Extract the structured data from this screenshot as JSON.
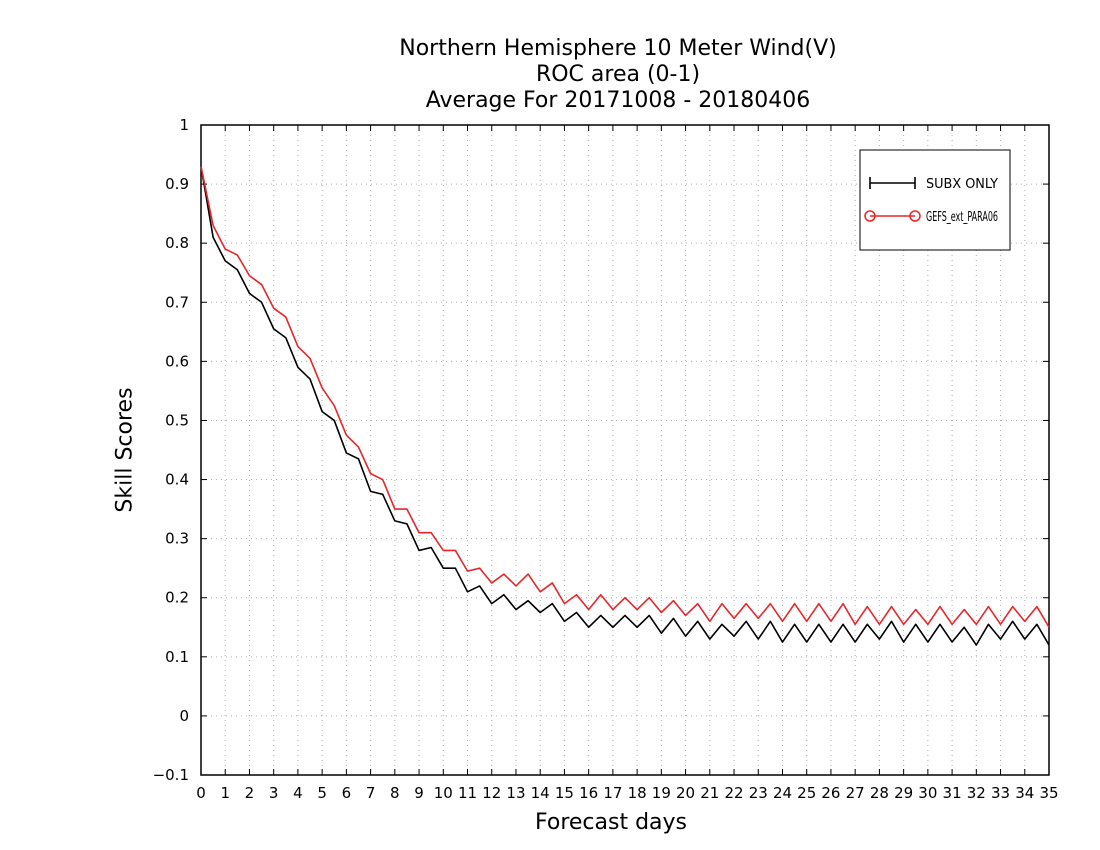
{
  "chart_data": {
    "type": "line",
    "title": [
      "Northern Hemisphere 10 Meter Wind(V)",
      "ROC area (0-1)",
      "Average For 20171008 - 20180406"
    ],
    "xlabel": "Forecast days",
    "ylabel": "Skill Scores",
    "xlim": [
      0,
      35
    ],
    "ylim": [
      -0.1,
      1
    ],
    "xticks": [
      0,
      1,
      2,
      3,
      4,
      5,
      6,
      7,
      8,
      9,
      10,
      11,
      12,
      13,
      14,
      15,
      16,
      17,
      18,
      19,
      20,
      21,
      22,
      23,
      24,
      25,
      26,
      27,
      28,
      29,
      30,
      31,
      32,
      33,
      34,
      35
    ],
    "yticks": [
      -0.1,
      0,
      0.1,
      0.2,
      0.3,
      0.4,
      0.5,
      0.6,
      0.7,
      0.8,
      0.9,
      1
    ],
    "ytick_labels": [
      "−0.1",
      "0",
      "0.1",
      "0.2",
      "0.3",
      "0.4",
      "0.5",
      "0.6",
      "0.7",
      "0.8",
      "0.9",
      "1"
    ],
    "grid": true,
    "legend_position": "top-right",
    "x_step": 0.5,
    "series": [
      {
        "name": "SUBX ONLY",
        "color": "#000000",
        "marker": "plus",
        "values": [
          0.93,
          0.81,
          0.77,
          0.755,
          0.715,
          0.7,
          0.655,
          0.64,
          0.59,
          0.57,
          0.515,
          0.5,
          0.445,
          0.435,
          0.38,
          0.375,
          0.33,
          0.325,
          0.28,
          0.285,
          0.25,
          0.25,
          0.21,
          0.22,
          0.19,
          0.205,
          0.18,
          0.195,
          0.175,
          0.19,
          0.16,
          0.175,
          0.15,
          0.17,
          0.15,
          0.17,
          0.15,
          0.17,
          0.14,
          0.165,
          0.135,
          0.16,
          0.13,
          0.155,
          0.135,
          0.16,
          0.13,
          0.16,
          0.125,
          0.155,
          0.125,
          0.155,
          0.125,
          0.155,
          0.125,
          0.155,
          0.13,
          0.16,
          0.125,
          0.155,
          0.125,
          0.155,
          0.125,
          0.15,
          0.12,
          0.155,
          0.13,
          0.16,
          0.13,
          0.155,
          0.12
        ]
      },
      {
        "name": "GEFS_ext_PARA06",
        "color": "#e8262a",
        "marker": "circle",
        "values": [
          0.93,
          0.83,
          0.79,
          0.78,
          0.745,
          0.73,
          0.69,
          0.675,
          0.625,
          0.605,
          0.555,
          0.525,
          0.475,
          0.455,
          0.41,
          0.4,
          0.35,
          0.35,
          0.31,
          0.31,
          0.28,
          0.28,
          0.245,
          0.25,
          0.225,
          0.24,
          0.22,
          0.24,
          0.21,
          0.225,
          0.19,
          0.205,
          0.18,
          0.205,
          0.18,
          0.2,
          0.18,
          0.2,
          0.175,
          0.195,
          0.17,
          0.19,
          0.16,
          0.19,
          0.165,
          0.19,
          0.165,
          0.19,
          0.16,
          0.19,
          0.16,
          0.19,
          0.16,
          0.19,
          0.155,
          0.185,
          0.155,
          0.185,
          0.155,
          0.18,
          0.155,
          0.185,
          0.155,
          0.18,
          0.155,
          0.185,
          0.155,
          0.185,
          0.16,
          0.185,
          0.15
        ]
      }
    ]
  }
}
